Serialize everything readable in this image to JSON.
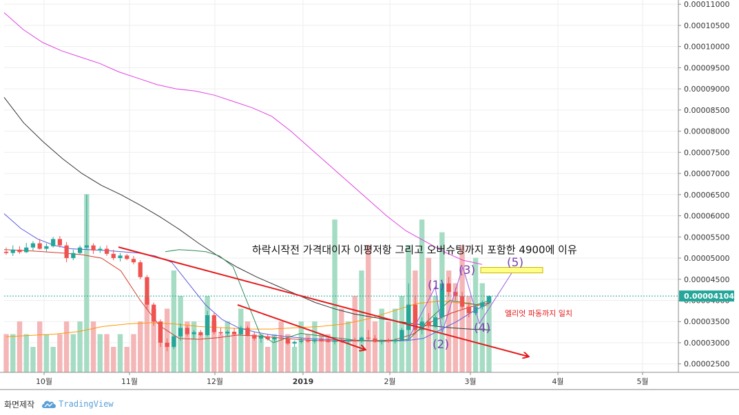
{
  "chart_data": {
    "type": "candlestick",
    "x_tick_labels": [
      "10월",
      "11월",
      "12월",
      "2019",
      "2월",
      "3월",
      "4월",
      "5월"
    ],
    "y_tick_labels": [
      "0.00011000",
      "0.00010500",
      "0.00010000",
      "0.00009500",
      "0.00009000",
      "0.00008500",
      "0.00008000",
      "0.00007500",
      "0.00007000",
      "0.00006500",
      "0.00006000",
      "0.00005500",
      "0.00005000",
      "0.00004500",
      "0.00004000",
      "0.00003500",
      "0.00003000",
      "0.00002500"
    ],
    "ylim": [
      2.3e-05,
      0.000111
    ],
    "last_price_label": "0.00004104",
    "last_price": 4.104e-05,
    "candles": [
      [
        5.15e-05,
        5.25e-05,
        5.08e-05,
        5.12e-05
      ],
      [
        5.12e-05,
        5.3e-05,
        5.05e-05,
        5.2e-05
      ],
      [
        5.2e-05,
        5.28e-05,
        5.1e-05,
        5.14e-05
      ],
      [
        5.14e-05,
        5.36e-05,
        5.12e-05,
        5.25e-05
      ],
      [
        5.25e-05,
        5.4e-05,
        5.18e-05,
        5.35e-05
      ],
      [
        5.35e-05,
        5.45e-05,
        5.2e-05,
        5.22e-05
      ],
      [
        5.22e-05,
        5.35e-05,
        5.15e-05,
        5.28e-05
      ],
      [
        5.28e-05,
        5.5e-05,
        5.25e-05,
        5.45e-05
      ],
      [
        5.45e-05,
        5.52e-05,
        5.25e-05,
        5.3e-05
      ],
      [
        5.3e-05,
        5.38e-05,
        4.9e-05,
        5e-05
      ],
      [
        5e-05,
        5.2e-05,
        4.95e-05,
        5.12e-05
      ],
      [
        5.12e-05,
        5.3e-05,
        5.08e-05,
        5.25e-05
      ],
      [
        5.25e-05,
        6.5e-05,
        5.2e-05,
        5.3e-05
      ],
      [
        5.3e-05,
        5.35e-05,
        5.1e-05,
        5.18e-05
      ],
      [
        5.18e-05,
        5.28e-05,
        5.12e-05,
        5.22e-05
      ],
      [
        5.22e-05,
        5.3e-05,
        5.05e-05,
        5.1e-05
      ],
      [
        5.1e-05,
        5.2e-05,
        4.95e-05,
        5e-05
      ],
      [
        5e-05,
        5.12e-05,
        4.92e-05,
        5.06e-05
      ],
      [
        5.06e-05,
        5.1e-05,
        4.95e-05,
        4.98e-05
      ],
      [
        4.98e-05,
        5.05e-05,
        4.85e-05,
        4.9e-05
      ],
      [
        4.9e-05,
        4.95e-05,
        4.5e-05,
        4.55e-05
      ],
      [
        4.55e-05,
        4.6e-05,
        3.8e-05,
        3.9e-05
      ],
      [
        3.9e-05,
        3.95e-05,
        3.4e-05,
        3.5e-05
      ],
      [
        3.5e-05,
        3.55e-05,
        2.9e-05,
        3e-05
      ],
      [
        3e-05,
        3.1e-05,
        2.8e-05,
        2.9e-05
      ],
      [
        2.9e-05,
        3.2e-05,
        2.85e-05,
        3.15e-05
      ],
      [
        3.15e-05,
        3.45e-05,
        3.05e-05,
        3.35e-05
      ],
      [
        3.35e-05,
        3.4e-05,
        3.15e-05,
        3.2e-05
      ],
      [
        3.2e-05,
        3.3e-05,
        3.1e-05,
        3.25e-05
      ],
      [
        3.25e-05,
        3.3e-05,
        3.15e-05,
        3.18e-05
      ],
      [
        3.18e-05,
        3.75e-05,
        3.15e-05,
        3.65e-05
      ],
      [
        3.65e-05,
        3.7e-05,
        3.2e-05,
        3.25e-05
      ],
      [
        3.25e-05,
        3.35e-05,
        3.18e-05,
        3.22e-05
      ],
      [
        3.22e-05,
        3.3e-05,
        3.15e-05,
        3.26e-05
      ],
      [
        3.26e-05,
        3.35e-05,
        3.18e-05,
        3.2e-05
      ],
      [
        3.2e-05,
        3.4e-05,
        3.18e-05,
        3.35e-05
      ],
      [
        3.35e-05,
        3.4e-05,
        3.15e-05,
        3.18e-05
      ],
      [
        3.18e-05,
        3.25e-05,
        3.05e-05,
        3.1e-05
      ],
      [
        3.1e-05,
        3.18e-05,
        3e-05,
        3.15e-05
      ],
      [
        3.15e-05,
        3.2e-05,
        3.05e-05,
        3.08e-05
      ],
      [
        3.08e-05,
        3.15e-05,
        3e-05,
        3.12e-05
      ],
      [
        3.12e-05,
        3.18e-05,
        3.05e-05,
        3.1e-05
      ],
      [
        3.1e-05,
        3.15e-05,
        2.95e-05,
        2.98e-05
      ],
      [
        2.98e-05,
        3.05e-05,
        2.9e-05,
        3.02e-05
      ],
      [
        3.02e-05,
        3.1e-05,
        2.98e-05,
        3.05e-05
      ],
      [
        3.05e-05,
        3.12e-05,
        3e-05,
        3.03e-05
      ],
      [
        3.03e-05,
        3.1e-05,
        2.98e-05,
        3.07e-05
      ],
      [
        3.07e-05,
        3.12e-05,
        3.02e-05,
        3.06e-05
      ],
      [
        3.06e-05,
        3.12e-05,
        3e-05,
        3.02e-05
      ],
      [
        3.02e-05,
        3.08e-05,
        2.96e-05,
        3.05e-05
      ],
      [
        3.05e-05,
        3.1e-05,
        3e-05,
        3.03e-05
      ],
      [
        3.03e-05,
        3.08e-05,
        2.98e-05,
        3.06e-05
      ],
      [
        3.06e-05,
        3.12e-05,
        3.02e-05,
        3.04e-05
      ],
      [
        3.04e-05,
        3.15e-05,
        3e-05,
        3.12e-05
      ],
      [
        3.12e-05,
        3.3e-05,
        3.05e-05,
        3.1e-05
      ],
      [
        3.1e-05,
        3.18e-05,
        3e-05,
        3.02e-05
      ],
      [
        3.02e-05,
        3.08e-05,
        2.96e-05,
        3.05e-05
      ],
      [
        3.05e-05,
        3.1e-05,
        3e-05,
        3.03e-05
      ],
      [
        3.03e-05,
        3.1e-05,
        2.98e-05,
        3.07e-05
      ],
      [
        3.07e-05,
        3.35e-05,
        3.05e-05,
        3.3e-05
      ],
      [
        3.3e-05,
        4.4e-05,
        3.1e-05,
        3.9e-05
      ],
      [
        3.9e-05,
        4.1e-05,
        3.2e-05,
        3.3e-05
      ],
      [
        3.3e-05,
        3.6e-05,
        3.2e-05,
        3.5e-05
      ],
      [
        3.5e-05,
        3.7e-05,
        3.35e-05,
        3.4e-05
      ],
      [
        3.4e-05,
        3.65e-05,
        3.35e-05,
        3.6e-05
      ],
      [
        3.6e-05,
        4.5e-05,
        3.55e-05,
        4.4e-05
      ],
      [
        4.4e-05,
        4.55e-05,
        4.1e-05,
        4.2e-05
      ],
      [
        4.2e-05,
        4.3e-05,
        4e-05,
        4.1e-05
      ],
      [
        4.1e-05,
        4.2e-05,
        3.8e-05,
        3.85e-05
      ],
      [
        3.85e-05,
        3.95e-05,
        3.6e-05,
        3.7e-05
      ],
      [
        3.7e-05,
        3.9e-05,
        3.65e-05,
        3.85e-05
      ],
      [
        3.85e-05,
        4e-05,
        3.78e-05,
        3.95e-05
      ],
      [
        3.95e-05,
        4.12e-05,
        3.9e-05,
        4.1e-05
      ]
    ],
    "series": [
      {
        "color": "#e040e0",
        "values": [
          0.000108,
          0.000104,
          0.000101,
          9.9e-05,
          9.75e-05,
          9.6e-05,
          9.4e-05,
          9.25e-05,
          9.1e-05,
          9e-05,
          8.95e-05,
          8.85e-05,
          8.7e-05,
          8.55e-05,
          8.35e-05,
          8e-05,
          7.6e-05,
          7.2e-05,
          6.8e-05,
          6.4e-05,
          6e-05,
          5.65e-05,
          5.4e-05,
          5.15e-05,
          4.95e-05,
          4.85e-05
        ]
      },
      {
        "color": "#333333",
        "values": [
          8.8e-05,
          8.2e-05,
          7.75e-05,
          7.35e-05,
          7e-05,
          6.72e-05,
          6.5e-05,
          6.25e-05,
          5.98e-05,
          5.68e-05,
          5.35e-05,
          5.05e-05,
          4.78e-05,
          4.55e-05,
          4.35e-05,
          4.15e-05,
          3.95e-05,
          3.8e-05,
          3.68e-05,
          3.6e-05,
          3.52e-05,
          3.45e-05,
          3.4e-05,
          3.35e-05,
          3.32e-05,
          3.3e-05
        ]
      },
      {
        "color": "#5a5ae0",
        "values": [
          6.05e-05,
          5.7e-05,
          5.45e-05,
          5.3e-05,
          5.22e-05,
          5.2e-05,
          5.18e-05,
          5.15e-05,
          5.12e-05,
          5.05e-05,
          4.9e-05,
          4.4e-05,
          3.9e-05,
          3.55e-05,
          3.35e-05,
          3.25e-05,
          3.18e-05,
          3.14e-05,
          3.1e-05,
          3.08e-05,
          3.06e-05,
          3.05e-05,
          3.04e-05,
          3.04e-05,
          3.05e-05,
          3.1e-05,
          3.3e-05,
          3.5e-05,
          3.75e-05,
          3.95e-05
        ]
      },
      {
        "color": "#d23a2a",
        "values": [
          5.2e-05,
          5.18e-05,
          5.15e-05,
          5.12e-05,
          5.08e-05,
          5e-05,
          4.7e-05,
          4e-05,
          3.4e-05,
          3.1e-05,
          3.08e-05,
          3.12e-05,
          3.18e-05,
          3.16e-05,
          3.12e-05,
          3.08e-05,
          3.05e-05,
          3.04e-05,
          3.04e-05,
          3.05e-05,
          3.06e-05,
          3.2e-05,
          3.5e-05,
          3.7e-05,
          3.85e-05,
          3.95e-05
        ]
      },
      {
        "color": "#2e8b57",
        "values": [
          5.15e-05,
          5.2e-05,
          5.18e-05,
          5.15e-05,
          5.05e-05,
          4.8e-05,
          4e-05,
          3.2e-05,
          3e-05,
          3.12e-05,
          3.22e-05,
          3.18e-05,
          3.14e-05,
          3.1e-05,
          3.06e-05,
          3.05e-05,
          3.03e-05,
          3.05e-05,
          3.08e-05,
          3.4e-05,
          3.7e-05,
          4e-05,
          3.95e-05,
          3.9e-05,
          4e-05
        ]
      },
      {
        "color": "#ff9800",
        "values": [
          2.8e-06,
          3e-06,
          3.1e-06,
          3.3e-06,
          3.4e-06,
          3.3e-06,
          3.2e-06,
          3.1e-06,
          3e-06,
          3e-06,
          2.9e-06,
          2.9e-06,
          3e-06,
          3.1e-06,
          3.4e-06,
          3.8e-06,
          4.2e-06
        ]
      }
    ],
    "volume": [
      3,
      3,
      4,
      3,
      2,
      4,
      3,
      2,
      3,
      4,
      3,
      4,
      14,
      4,
      3,
      3,
      2,
      3,
      2,
      3,
      4,
      6,
      5,
      4,
      5,
      8,
      6,
      4,
      4,
      3,
      6,
      4,
      3,
      4,
      3,
      5,
      4,
      3,
      3,
      2,
      3,
      4,
      3,
      2,
      4,
      3,
      4,
      3,
      3,
      12,
      5,
      4,
      6,
      8,
      10,
      4,
      5,
      4,
      5,
      6,
      10,
      8,
      12,
      9,
      6,
      11,
      8,
      7,
      10,
      6,
      9,
      7,
      6
    ],
    "volume_ma": [
      2.8,
      2.9,
      3.0,
      3.2,
      3.6,
      3.8,
      3.9,
      3.8,
      3.6,
      3.5,
      3.4,
      3.4,
      3.5,
      3.6,
      3.8,
      4.2,
      4.8,
      5.4,
      5.6,
      5.4,
      5.2
    ],
    "annotations": {
      "title_note": "하락시작전 가격대이자 이평저항 그리고 오버슈팅까지 포함한 4900에 이유",
      "elliott_note": "엘리엇 파동까지 일치",
      "wave_labels": [
        "(1)",
        "(2)",
        "(3)",
        "(4)",
        "(5)"
      ],
      "target_zone": [
        4.65e-05,
        4.78e-05
      ]
    }
  },
  "footer": {
    "maker_label": "화면제작",
    "brand_label": "TradingView"
  }
}
